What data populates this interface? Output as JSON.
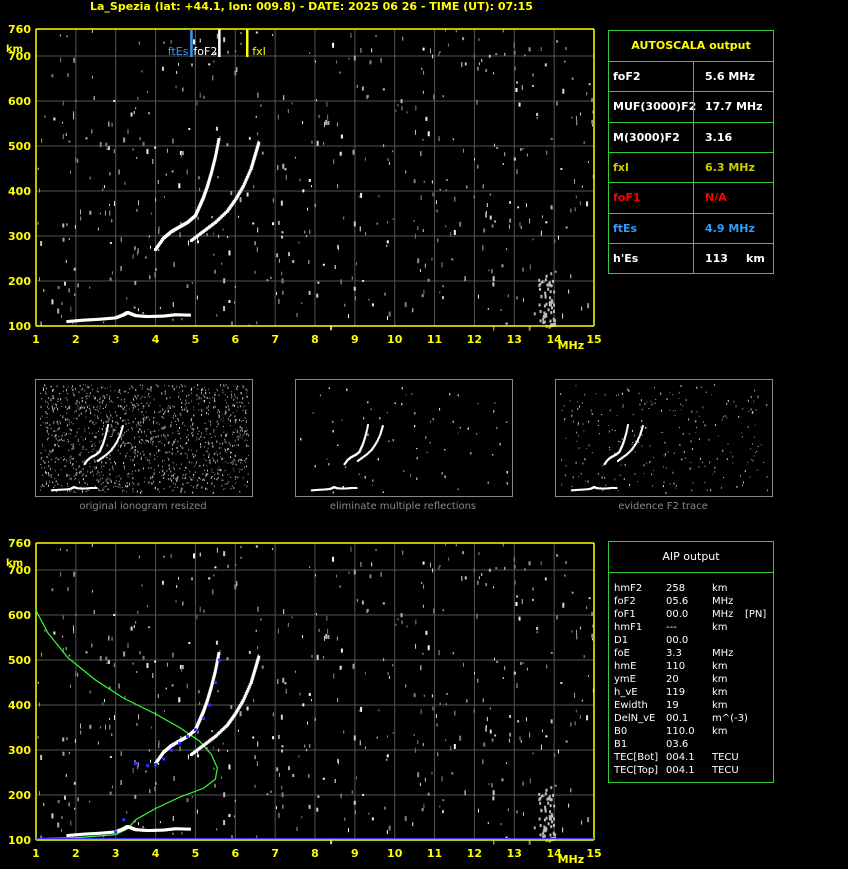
{
  "title": "La_Spezia (lat: +44.1, lon: 009.8) - DATE: 2025 06 26 - TIME (UT): 07:15",
  "colors": {
    "axis": "#ffff00",
    "grid": "#555555",
    "panel_border": "#33cc33",
    "ftEs": "#3399ff",
    "fxI": "#ffff00",
    "foF1": "#ff0000",
    "profile": "#33ff33",
    "trace_blue": "#3333ff"
  },
  "autoscala": {
    "header": "AUTOSCALA output",
    "rows": [
      {
        "label": "foF2",
        "value": "5.6 MHz",
        "color": "#ffffff"
      },
      {
        "label": "MUF(3000)F2",
        "value": "17.7 MHz",
        "color": "#ffffff"
      },
      {
        "label": "M(3000)F2",
        "value": "3.16",
        "color": "#ffffff"
      },
      {
        "label": "fxI",
        "value": "6.3 MHz",
        "color": "#cccc00"
      },
      {
        "label": "foF1",
        "value": "N/A",
        "color": "#ff0000"
      },
      {
        "label": "ftEs",
        "value": "4.9 MHz",
        "color": "#3399ff"
      },
      {
        "label": "h'Es",
        "value": "113",
        "unit": "km",
        "color": "#ffffff"
      }
    ]
  },
  "aip": {
    "header": "AIP output",
    "rows": [
      {
        "k": "hmF2",
        "v": "258",
        "u": "km",
        "x": ""
      },
      {
        "k": "foF2",
        "v": "05.6",
        "u": "MHz",
        "x": ""
      },
      {
        "k": "foF1",
        "v": "00.0",
        "u": "MHz",
        "x": "[PN]"
      },
      {
        "k": "hmF1",
        "v": "---",
        "u": "km",
        "x": ""
      },
      {
        "k": "D1",
        "v": "00.0",
        "u": "",
        "x": ""
      },
      {
        "k": "foE",
        "v": "3.3",
        "u": "MHz",
        "x": ""
      },
      {
        "k": "hmE",
        "v": "110",
        "u": "km",
        "x": ""
      },
      {
        "k": "ymE",
        "v": "20",
        "u": "km",
        "x": ""
      },
      {
        "k": "h_vE",
        "v": "119",
        "u": "km",
        "x": ""
      },
      {
        "k": "Ewidth",
        "v": "19",
        "u": "km",
        "x": ""
      },
      {
        "k": "DelN_vE",
        "v": "00.1",
        "u": "m^(-3)",
        "x": ""
      },
      {
        "k": "B0",
        "v": "110.0",
        "u": "km",
        "x": ""
      },
      {
        "k": "B1",
        "v": "03.6",
        "u": "",
        "x": ""
      },
      {
        "k": "TEC[Bot]",
        "v": "004.1",
        "u": "TECU",
        "x": ""
      },
      {
        "k": "TEC[Top]",
        "v": "004.1",
        "u": "TECU",
        "x": ""
      }
    ]
  },
  "thumbnails": [
    {
      "caption": "original ionogram resized"
    },
    {
      "caption": "eliminate multiple reflections"
    },
    {
      "caption": "evidence F2 trace"
    }
  ],
  "chart_data": [
    {
      "type": "scatter",
      "name": "ionogram-top",
      "x_range": [
        1,
        15
      ],
      "y_range": [
        100,
        760
      ],
      "x_ticks": [
        1,
        2,
        3,
        4,
        5,
        6,
        7,
        8,
        9,
        10,
        11,
        12,
        13,
        14,
        15
      ],
      "y_ticks": [
        100,
        200,
        300,
        400,
        500,
        600,
        700,
        760
      ],
      "xlabel": "MHz",
      "ylabel": "km",
      "grid": true,
      "markers": [
        {
          "label": "ftEs",
          "x": 4.9,
          "color": "#3399ff"
        },
        {
          "label": "foF2",
          "x": 5.6,
          "color": "#ffffff"
        },
        {
          "label": "fxI",
          "x": 6.3,
          "color": "#ffff00"
        }
      ],
      "traces": [
        {
          "name": "Es",
          "points": [
            [
              1.8,
              110
            ],
            [
              2.2,
              113
            ],
            [
              2.6,
              115
            ],
            [
              3.0,
              118
            ],
            [
              3.2,
              125
            ],
            [
              3.3,
              130
            ],
            [
              3.5,
              123
            ],
            [
              3.8,
              121
            ],
            [
              4.2,
              122
            ],
            [
              4.5,
              125
            ],
            [
              4.9,
              124
            ]
          ]
        },
        {
          "name": "O-trace",
          "points": [
            [
              4.0,
              270
            ],
            [
              4.2,
              295
            ],
            [
              4.4,
              310
            ],
            [
              4.6,
              320
            ],
            [
              4.8,
              330
            ],
            [
              5.0,
              345
            ],
            [
              5.1,
              365
            ],
            [
              5.2,
              385
            ],
            [
              5.3,
              410
            ],
            [
              5.4,
              440
            ],
            [
              5.5,
              475
            ],
            [
              5.6,
              520
            ]
          ]
        },
        {
          "name": "X-trace",
          "points": [
            [
              4.9,
              290
            ],
            [
              5.2,
              310
            ],
            [
              5.5,
              330
            ],
            [
              5.8,
              355
            ],
            [
              6.0,
              380
            ],
            [
              6.2,
              410
            ],
            [
              6.4,
              450
            ],
            [
              6.5,
              480
            ],
            [
              6.6,
              510
            ]
          ]
        }
      ]
    },
    {
      "type": "scatter",
      "name": "ionogram-bottom",
      "x_range": [
        1,
        15
      ],
      "y_range": [
        100,
        760
      ],
      "x_ticks": [
        1,
        2,
        3,
        4,
        5,
        6,
        7,
        8,
        9,
        10,
        11,
        12,
        13,
        14,
        15
      ],
      "y_ticks": [
        100,
        200,
        300,
        400,
        500,
        600,
        700,
        760
      ],
      "xlabel": "MHz",
      "ylabel": "km",
      "grid": true,
      "traces": [
        {
          "name": "Es",
          "points": [
            [
              1.8,
              110
            ],
            [
              2.2,
              113
            ],
            [
              2.6,
              115
            ],
            [
              3.0,
              118
            ],
            [
              3.2,
              125
            ],
            [
              3.3,
              130
            ],
            [
              3.5,
              123
            ],
            [
              3.8,
              121
            ],
            [
              4.2,
              122
            ],
            [
              4.5,
              125
            ],
            [
              4.9,
              124
            ]
          ]
        },
        {
          "name": "O-trace",
          "points": [
            [
              4.0,
              270
            ],
            [
              4.2,
              295
            ],
            [
              4.4,
              310
            ],
            [
              4.6,
              320
            ],
            [
              4.8,
              330
            ],
            [
              5.0,
              345
            ],
            [
              5.1,
              365
            ],
            [
              5.2,
              385
            ],
            [
              5.3,
              410
            ],
            [
              5.4,
              440
            ],
            [
              5.5,
              475
            ],
            [
              5.6,
              520
            ]
          ]
        },
        {
          "name": "X-trace",
          "points": [
            [
              4.9,
              290
            ],
            [
              5.2,
              310
            ],
            [
              5.5,
              330
            ],
            [
              5.8,
              355
            ],
            [
              6.0,
              380
            ],
            [
              6.2,
              410
            ],
            [
              6.4,
              450
            ],
            [
              6.5,
              480
            ],
            [
              6.6,
              510
            ]
          ]
        }
      ],
      "profile": [
        [
          1.0,
          610
        ],
        [
          1.3,
          560
        ],
        [
          1.8,
          505
        ],
        [
          2.5,
          455
        ],
        [
          3.2,
          415
        ],
        [
          4.0,
          380
        ],
        [
          4.6,
          350
        ],
        [
          5.1,
          320
        ],
        [
          5.4,
          290
        ],
        [
          5.55,
          260
        ],
        [
          5.5,
          235
        ],
        [
          5.2,
          215
        ],
        [
          4.6,
          195
        ],
        [
          4.0,
          170
        ],
        [
          3.5,
          145
        ],
        [
          3.3,
          125
        ],
        [
          3.0,
          112
        ],
        [
          2.0,
          105
        ],
        [
          1.0,
          103
        ]
      ],
      "blue_trace": [
        [
          3.2,
          145
        ],
        [
          3.0,
          118
        ],
        [
          3.5,
          270
        ],
        [
          3.8,
          265
        ],
        [
          4.0,
          268
        ],
        [
          4.2,
          280
        ],
        [
          4.4,
          300
        ],
        [
          4.6,
          315
        ],
        [
          4.8,
          330
        ],
        [
          5.0,
          345
        ],
        [
          5.2,
          370
        ],
        [
          5.35,
          400
        ],
        [
          5.5,
          450
        ],
        [
          5.6,
          500
        ]
      ]
    }
  ]
}
